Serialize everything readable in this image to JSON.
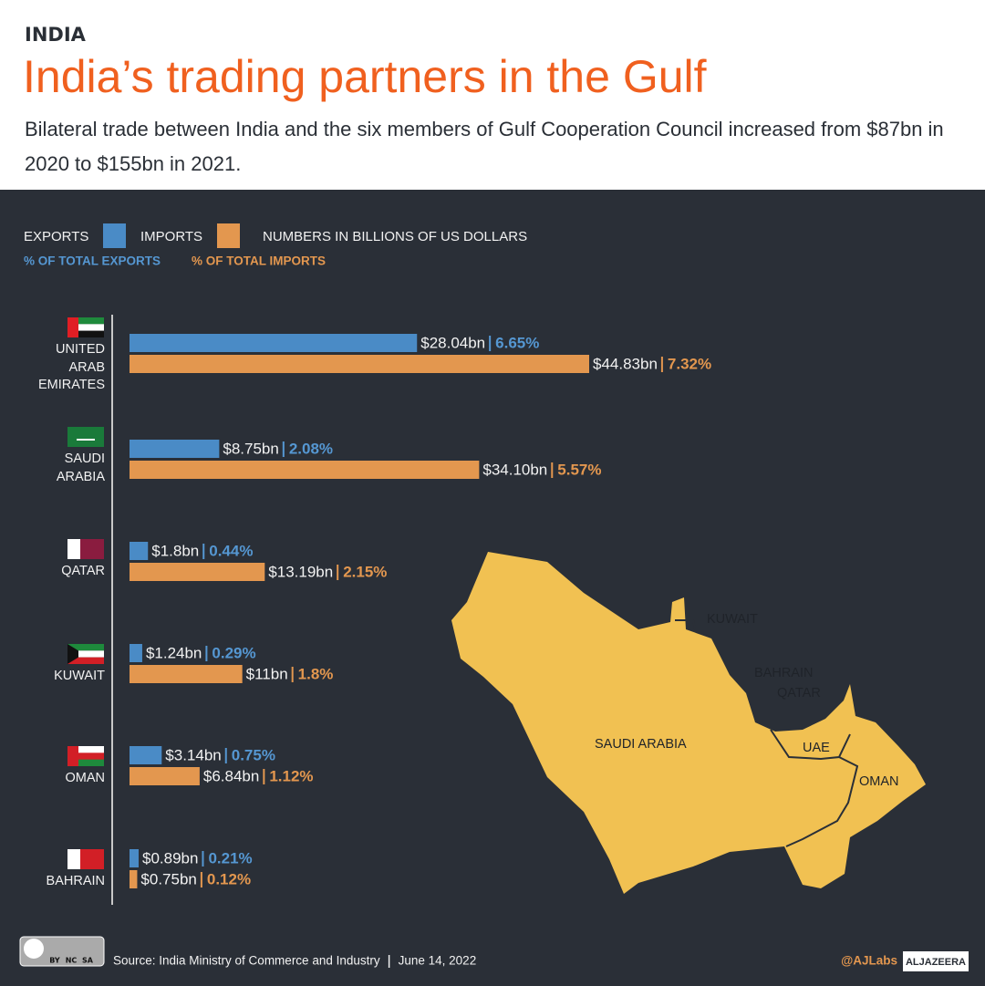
{
  "chart_data": {
    "type": "bar",
    "orientation": "horizontal",
    "kicker": "INDIA",
    "title": "India’s trading partners in the Gulf",
    "subtitle": "Bilateral trade between India and the six members of Gulf Cooperation Council increased from $87bn in 2020 to $155bn in 2021.",
    "unit_note": "NUMBERS IN BILLIONS OF US DOLLARS",
    "categories": [
      "UNITED ARAB EMIRATES",
      "SAUDI ARABIA",
      "QATAR",
      "KUWAIT",
      "OMAN",
      "BAHRAIN"
    ],
    "series": [
      {
        "name": "EXPORTS",
        "color": "#4a8bc6",
        "share_color": "#5597d2",
        "share_legend": "% OF TOTAL EXPORTS",
        "values": [
          28.04,
          8.75,
          1.8,
          1.24,
          3.14,
          0.89
        ],
        "value_labels": [
          "$28.04bn",
          "$8.75bn",
          "$1.8bn",
          "$1.24bn",
          "$3.14bn",
          "$0.89bn"
        ],
        "shares": [
          6.65,
          2.08,
          0.44,
          0.29,
          0.75,
          0.21
        ],
        "share_labels": [
          "6.65%",
          "2.08%",
          "0.44%",
          "0.29%",
          "0.75%",
          "0.21%"
        ]
      },
      {
        "name": "IMPORTS",
        "color": "#e3974f",
        "share_color": "#e3974f",
        "share_legend": "% OF TOTAL IMPORTS",
        "values": [
          44.83,
          34.1,
          13.19,
          11,
          6.84,
          0.75
        ],
        "value_labels": [
          "$44.83bn",
          "$34.10bn",
          "$13.19bn",
          "$11bn",
          "$6.84bn",
          "$0.75bn"
        ],
        "shares": [
          7.32,
          5.57,
          2.15,
          1.8,
          1.12,
          0.12
        ],
        "share_labels": [
          "7.32%",
          "5.57%",
          "2.15%",
          "1.8%",
          "1.12%",
          "0.12%"
        ]
      }
    ],
    "map_labels": [
      "KUWAIT",
      "BAHRAIN",
      "QATAR",
      "UAE",
      "SAUDI ARABIA",
      "OMAN"
    ],
    "license_terms": [
      "BY",
      "NC",
      "SA"
    ],
    "source": "Source: India Ministry of Commerce and Industry",
    "date": "June 14, 2022",
    "credit": "@AJLabs",
    "brand": "ALJAZEERA"
  }
}
